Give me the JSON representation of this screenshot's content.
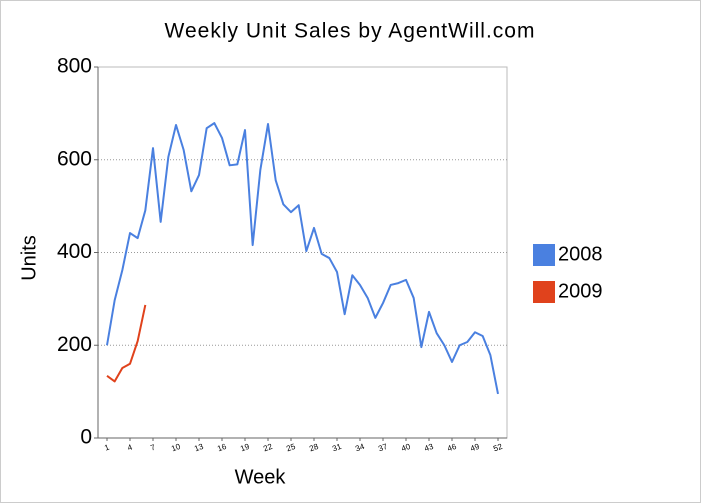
{
  "chart_data": {
    "type": "line",
    "title": "Weekly Unit Sales by AgentWill.com",
    "x_label": "Week",
    "y_label": "Units",
    "x": [
      1,
      2,
      3,
      4,
      5,
      6,
      7,
      8,
      9,
      10,
      11,
      12,
      13,
      14,
      15,
      16,
      17,
      18,
      19,
      20,
      21,
      22,
      23,
      24,
      25,
      26,
      27,
      28,
      29,
      30,
      31,
      32,
      33,
      34,
      35,
      36,
      37,
      38,
      39,
      40,
      41,
      42,
      43,
      44,
      45,
      46,
      47,
      48,
      49,
      50,
      51,
      52
    ],
    "xlim": [
      1,
      52
    ],
    "xticks": [
      1,
      4,
      7,
      10,
      13,
      16,
      19,
      22,
      25,
      28,
      31,
      34,
      37,
      40,
      43,
      46,
      49,
      52
    ],
    "ylim": [
      0,
      800
    ],
    "yticks": [
      0,
      200,
      400,
      600,
      800
    ],
    "grid": true,
    "legend": "right",
    "series": [
      {
        "name": "2008",
        "color": "#4a80e0",
        "values": [
          200,
          297,
          362,
          442,
          431,
          491,
          625,
          466,
          606,
          675,
          621,
          532,
          567,
          668,
          679,
          647,
          588,
          590,
          664,
          416,
          578,
          677,
          556,
          504,
          487,
          502,
          403,
          453,
          397,
          388,
          358,
          267,
          351,
          330,
          302,
          259,
          291,
          330,
          334,
          341,
          302,
          196,
          272,
          226,
          200,
          164,
          200,
          207,
          228,
          220,
          179,
          95
        ]
      },
      {
        "name": "2009",
        "color": "#e0421c",
        "values": [
          134,
          122,
          151,
          160,
          209,
          287,
          null,
          null,
          null,
          null,
          null,
          null,
          null,
          null,
          null,
          null,
          null,
          null,
          null,
          null,
          null,
          null,
          null,
          null,
          null,
          null,
          null,
          null,
          null,
          null,
          null,
          null,
          null,
          null,
          null,
          null,
          null,
          null,
          null,
          null,
          null,
          null,
          null,
          null,
          null,
          null,
          null,
          null,
          null,
          null,
          null,
          null
        ]
      }
    ]
  }
}
